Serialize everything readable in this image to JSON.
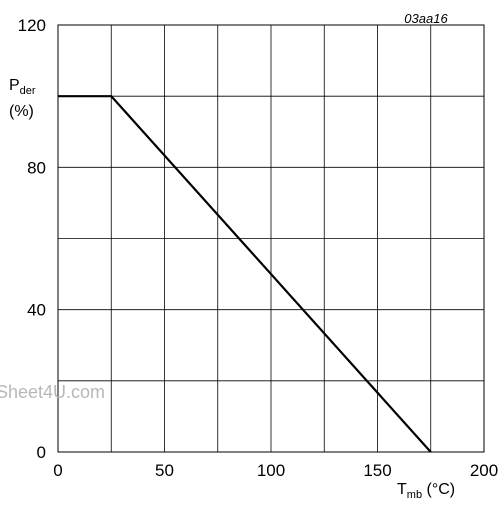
{
  "figure_code": "03aa16",
  "watermark": "Sheet4U.com",
  "chart_data": {
    "type": "line",
    "x": [
      0,
      25,
      175
    ],
    "series": [
      {
        "values": [
          100,
          100,
          0
        ]
      }
    ],
    "xlim": [
      0,
      200
    ],
    "ylim": [
      0,
      120
    ],
    "x_ticks": [
      "0",
      "50",
      "100",
      "150",
      "200"
    ],
    "y_ticks": [
      "0",
      "40",
      "80",
      "120"
    ],
    "grid": true,
    "xlabel": {
      "main": "T",
      "sub": "mb",
      "unit": " (°C)"
    },
    "ylabel": {
      "main": "P",
      "sub": "der",
      "unit": "(%)"
    }
  }
}
